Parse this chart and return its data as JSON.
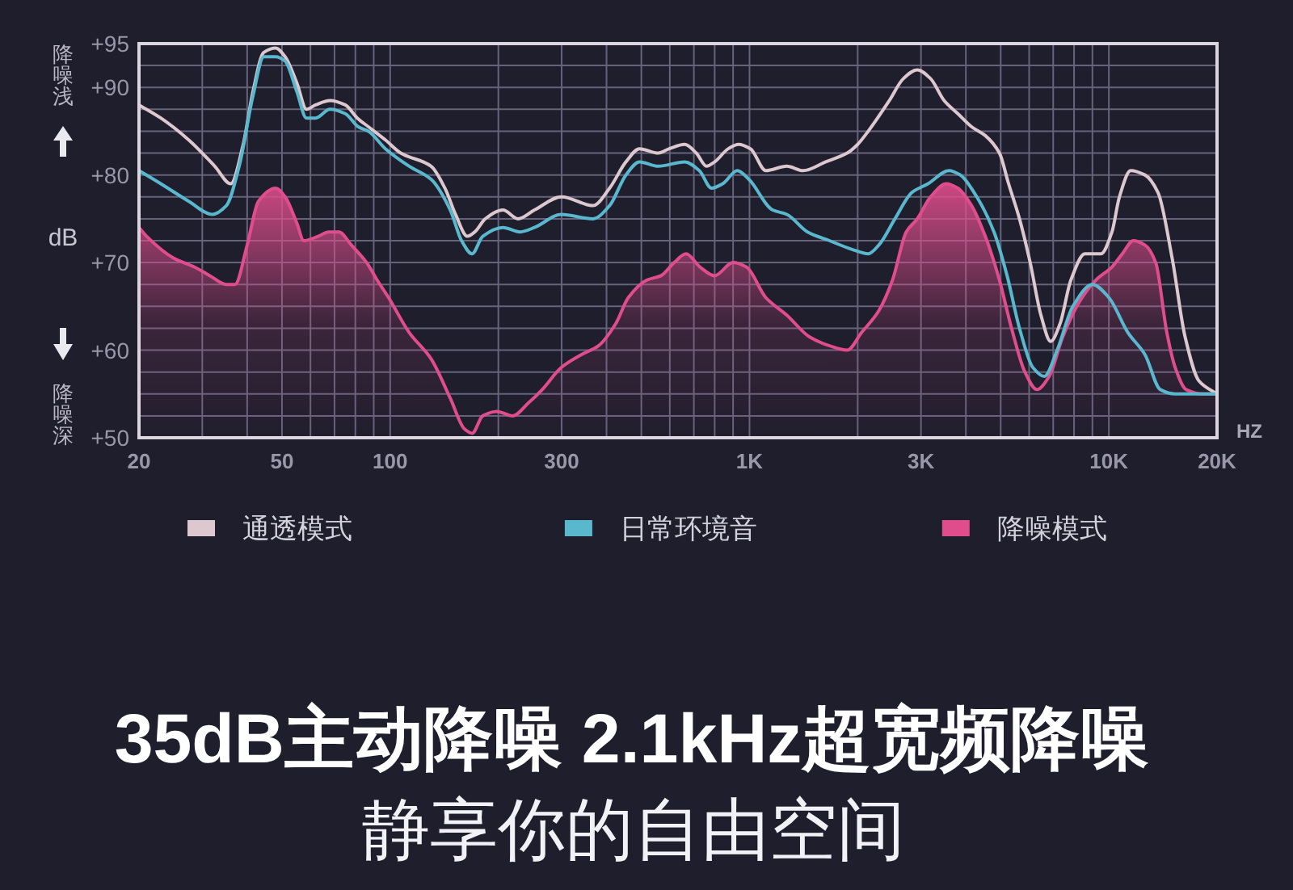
{
  "chart_data": {
    "type": "line",
    "title": "35dB主动降噪 2.1kHz超宽频降噪",
    "subtitle": "静享你的自由空间",
    "xlabel": "HZ",
    "ylabel": "dB",
    "annotations": [
      "降噪浅",
      "降噪深"
    ],
    "log": "x",
    "xlim": [
      20,
      20000
    ],
    "xticks": [
      20,
      {
        "value": 30,
        "label": null
      },
      {
        "value": 40,
        "label": null
      },
      50,
      {
        "value": 60,
        "label": null
      },
      {
        "value": 70,
        "label": null
      },
      {
        "value": 80,
        "label": null
      },
      {
        "value": 90,
        "label": null
      },
      100,
      {
        "value": 200,
        "label": null
      },
      300,
      {
        "value": 400,
        "label": null
      },
      {
        "value": 500,
        "label": null
      },
      {
        "value": 600,
        "label": null
      },
      {
        "value": 700,
        "label": null
      },
      {
        "value": 800,
        "label": null
      },
      {
        "value": 900,
        "label": null
      },
      {
        "value": 1000,
        "label": "1K"
      },
      {
        "value": 2000,
        "label": null
      },
      {
        "value": 3000,
        "label": "3K"
      },
      {
        "value": 4000,
        "label": null
      },
      {
        "value": 5000,
        "label": null
      },
      {
        "value": 6000,
        "label": null
      },
      {
        "value": 7000,
        "label": null
      },
      {
        "value": 8000,
        "label": null
      },
      {
        "value": 9000,
        "label": null
      },
      {
        "value": 10000,
        "label": "10K"
      },
      {
        "value": 20000,
        "label": "20K"
      }
    ],
    "ylim": [
      50,
      95
    ],
    "yticks": [
      {
        "value": 50,
        "label": "+50"
      },
      {
        "value": 52.5,
        "label": null
      },
      {
        "value": 55,
        "label": null
      },
      {
        "value": 57.5,
        "label": null
      },
      {
        "value": 60,
        "label": "+60"
      },
      {
        "value": 62.5,
        "label": null
      },
      {
        "value": 65,
        "label": null
      },
      {
        "value": 67.5,
        "label": null
      },
      {
        "value": 70,
        "label": "+70"
      },
      {
        "value": 72.5,
        "label": null
      },
      {
        "value": 75,
        "label": null
      },
      {
        "value": 77.5,
        "label": null
      },
      {
        "value": 80,
        "label": "+80"
      },
      {
        "value": 82.5,
        "label": null
      },
      {
        "value": 85,
        "label": null
      },
      {
        "value": 87.5,
        "label": null
      },
      {
        "value": 90,
        "label": "+90"
      },
      {
        "value": 92.5,
        "label": null
      },
      {
        "value": 95,
        "label": "+95"
      }
    ],
    "grid": true,
    "legend": "bottom",
    "series": [
      {
        "name": "通透模式",
        "color": "#dcc8ce",
        "x": [
          20,
          23,
          27.5,
          32.5,
          36,
          39,
          41.5,
          44.5,
          48,
          51,
          55,
          58.5,
          62,
          68,
          75,
          81,
          87,
          97,
          107,
          130,
          142,
          152,
          164,
          172,
          184,
          206,
          227,
          252,
          300,
          367,
          408,
          453,
          494,
          557,
          598,
          660,
          711,
          759,
          800,
          873,
          932,
          1006,
          1110,
          1270,
          1410,
          1630,
          1870,
          2000,
          2140,
          2450,
          2680,
          2930,
          3190,
          3480,
          3800,
          4150,
          4530,
          4960,
          5260,
          5640,
          6040,
          6470,
          6890,
          7310,
          7840,
          8580,
          9510,
          10200,
          10700,
          11500,
          12600,
          13700,
          15000,
          16300,
          17800,
          20000
        ],
        "values": [
          88,
          86.5,
          84,
          81,
          79,
          83.5,
          89.5,
          94,
          94.5,
          93.5,
          90.5,
          87.5,
          88,
          88.5,
          88,
          86.5,
          85.5,
          84,
          82.5,
          81,
          78.5,
          75.5,
          73,
          73.5,
          75,
          76,
          75,
          76,
          77.5,
          76.5,
          78.5,
          81.5,
          83,
          82.5,
          83,
          83.5,
          82.5,
          81,
          81.5,
          83,
          83.5,
          83,
          80.5,
          81,
          80.5,
          81.5,
          82.5,
          83.5,
          85,
          88.5,
          91,
          92,
          91,
          88.5,
          87,
          85.5,
          84.5,
          82.5,
          79,
          75,
          70,
          64,
          61,
          63,
          68,
          71,
          71,
          73.5,
          77.5,
          80.5,
          80,
          78,
          70.5,
          61.5,
          56.5,
          55
        ]
      },
      {
        "name": "日常环境音",
        "color": "#5ab8ce",
        "x": [
          20,
          23,
          27.5,
          32,
          35,
          38,
          41.5,
          44.5,
          48,
          51,
          55,
          58.5,
          62,
          68,
          75,
          81.5,
          87,
          97,
          113,
          130,
          147,
          158,
          169,
          181,
          206,
          230,
          252,
          299,
          367,
          408,
          453,
          494,
          557,
          660,
          725,
          784,
          842,
          925,
          996,
          1160,
          1270,
          1450,
          1670,
          1930,
          2140,
          2290,
          2540,
          2830,
          3140,
          3590,
          3860,
          4290,
          4790,
          5210,
          5640,
          6150,
          6610,
          7180,
          7940,
          9000,
          10000,
          11300,
          12600,
          13900,
          15300,
          17200,
          20000
        ],
        "values": [
          80.5,
          79,
          77,
          75.5,
          76.5,
          81,
          89,
          93.5,
          93.5,
          93,
          89.5,
          86.5,
          86.5,
          87.5,
          87,
          85.5,
          85,
          83,
          81,
          79.5,
          76,
          72.5,
          71,
          73,
          74,
          73.5,
          74,
          75.5,
          75,
          76.5,
          80,
          81.5,
          81,
          81.5,
          80.5,
          78.5,
          79,
          80.5,
          79.5,
          76,
          75.5,
          73.5,
          72.5,
          71.5,
          71,
          72,
          75,
          78,
          79,
          80.5,
          80,
          77.5,
          73.5,
          68.5,
          62.5,
          58,
          57,
          60,
          65,
          67.5,
          66,
          62,
          59.5,
          55.5,
          55,
          55,
          55
        ]
      },
      {
        "name": "降噪模式",
        "type": "area",
        "color": "#e04d8c",
        "x": [
          20,
          21,
          25,
          28.5,
          31.5,
          35,
          37,
          40,
          43,
          48,
          51,
          55,
          57.5,
          63,
          67.5,
          72,
          78,
          86,
          92,
          99,
          113,
          130,
          147,
          161,
          169,
          181,
          198,
          219,
          243,
          265,
          299,
          341,
          380,
          424,
          460,
          518,
          567,
          617,
          666,
          728,
          799,
          900,
          980,
          1110,
          1270,
          1470,
          1670,
          1870,
          2050,
          2290,
          2500,
          2730,
          2930,
          3190,
          3530,
          3800,
          4150,
          4530,
          4960,
          5360,
          5840,
          6310,
          6820,
          7440,
          8270,
          9200,
          10200,
          10900,
          11700,
          12600,
          13500,
          14500,
          15300,
          16400,
          18300,
          20000
        ],
        "values": [
          74,
          73,
          70.5,
          69.5,
          68.5,
          67.5,
          67.5,
          72,
          77,
          78.5,
          77.5,
          74.5,
          72.5,
          73,
          73.5,
          73.5,
          72,
          70,
          68,
          66,
          62,
          59,
          54.5,
          51,
          50.5,
          52.5,
          53,
          52.5,
          54,
          55.5,
          58,
          59.5,
          60.5,
          63,
          66,
          68,
          68.5,
          70,
          71,
          69.5,
          68.5,
          70,
          69.5,
          66,
          64,
          61.5,
          60.5,
          60,
          62,
          64.5,
          68,
          73.5,
          75,
          77.5,
          79,
          78.5,
          76.5,
          73,
          68,
          62.5,
          57.5,
          55.5,
          57,
          61.5,
          65.5,
          68,
          69.5,
          71,
          72.5,
          72,
          70,
          62,
          58,
          55.5,
          55,
          55
        ]
      }
    ]
  }
}
